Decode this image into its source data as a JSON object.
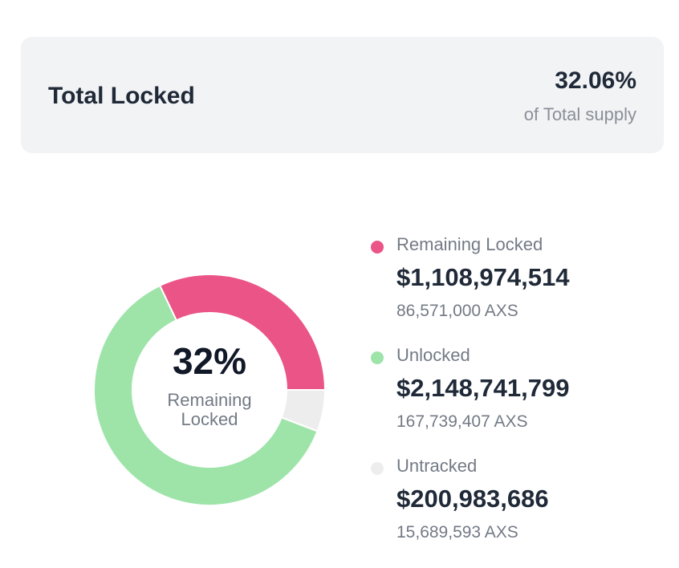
{
  "summary": {
    "title": "Total Locked",
    "percent_label": "32.06%",
    "subtitle": "of Total supply"
  },
  "chart_data": {
    "type": "pie",
    "title": "Total Locked",
    "center_label": "32%",
    "center_sublabel": "Remaining Locked",
    "series": [
      {
        "name": "Remaining Locked",
        "value_usd": "$1,108,974,514",
        "tokens": "86,571,000 AXS",
        "amount": 86571000,
        "color": "#ea5486"
      },
      {
        "name": "Unlocked",
        "value_usd": "$2,148,741,799",
        "tokens": "167,739,407 AXS",
        "amount": 167739407,
        "color": "#9ee4a9"
      },
      {
        "name": "Untracked",
        "value_usd": "$200,983,686",
        "tokens": "15,689,593 AXS",
        "amount": 15689593,
        "color": "#ededee"
      }
    ]
  }
}
